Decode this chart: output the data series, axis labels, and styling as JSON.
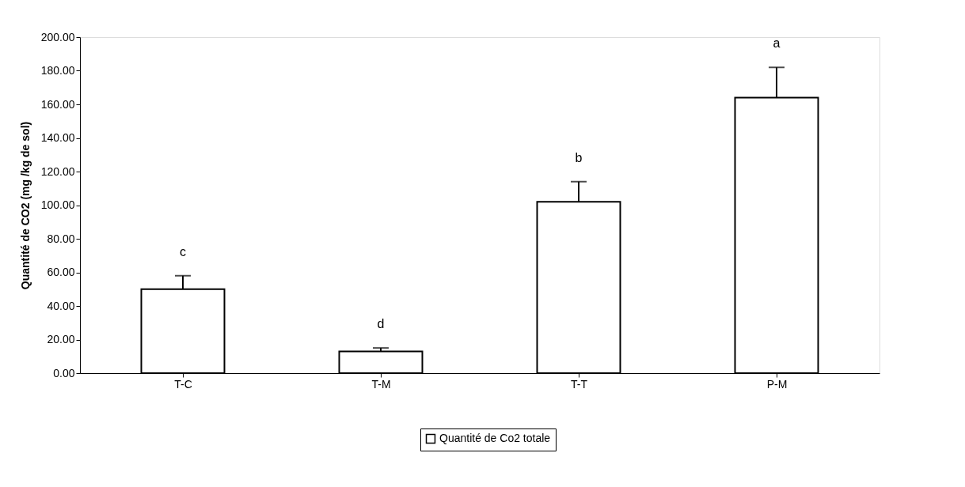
{
  "chart_data": {
    "type": "bar",
    "ylabel": "Quantité de CO2 (mg /kg de sol)",
    "categories": [
      "T-C",
      "T-M",
      "T-T",
      "P-M"
    ],
    "series": [
      {
        "name": "Quantité de Co2 totale",
        "color": "#ffffff",
        "values": [
          50,
          13,
          102,
          164
        ],
        "errors": [
          [
            50,
            58
          ],
          [
            13,
            15
          ],
          [
            102,
            114
          ],
          [
            164,
            182
          ]
        ]
      }
    ],
    "ylim": [
      0,
      200
    ],
    "yticks": [
      {
        "value": 0,
        "label": "0.00"
      },
      {
        "value": 20,
        "label": "20.00"
      },
      {
        "value": 40,
        "label": "40.00"
      },
      {
        "value": 60,
        "label": "60.00"
      },
      {
        "value": 80,
        "label": "80.00"
      },
      {
        "value": 100,
        "label": "100.00"
      },
      {
        "value": 120,
        "label": "120.00"
      },
      {
        "value": 140,
        "label": "140.00"
      },
      {
        "value": 160,
        "label": "160.00"
      },
      {
        "value": 180,
        "label": "180.00"
      },
      {
        "value": 200,
        "label": "200.00"
      }
    ],
    "annotations": [
      "c",
      "d",
      "b",
      "a"
    ],
    "grid": false,
    "legend": "bottom"
  }
}
